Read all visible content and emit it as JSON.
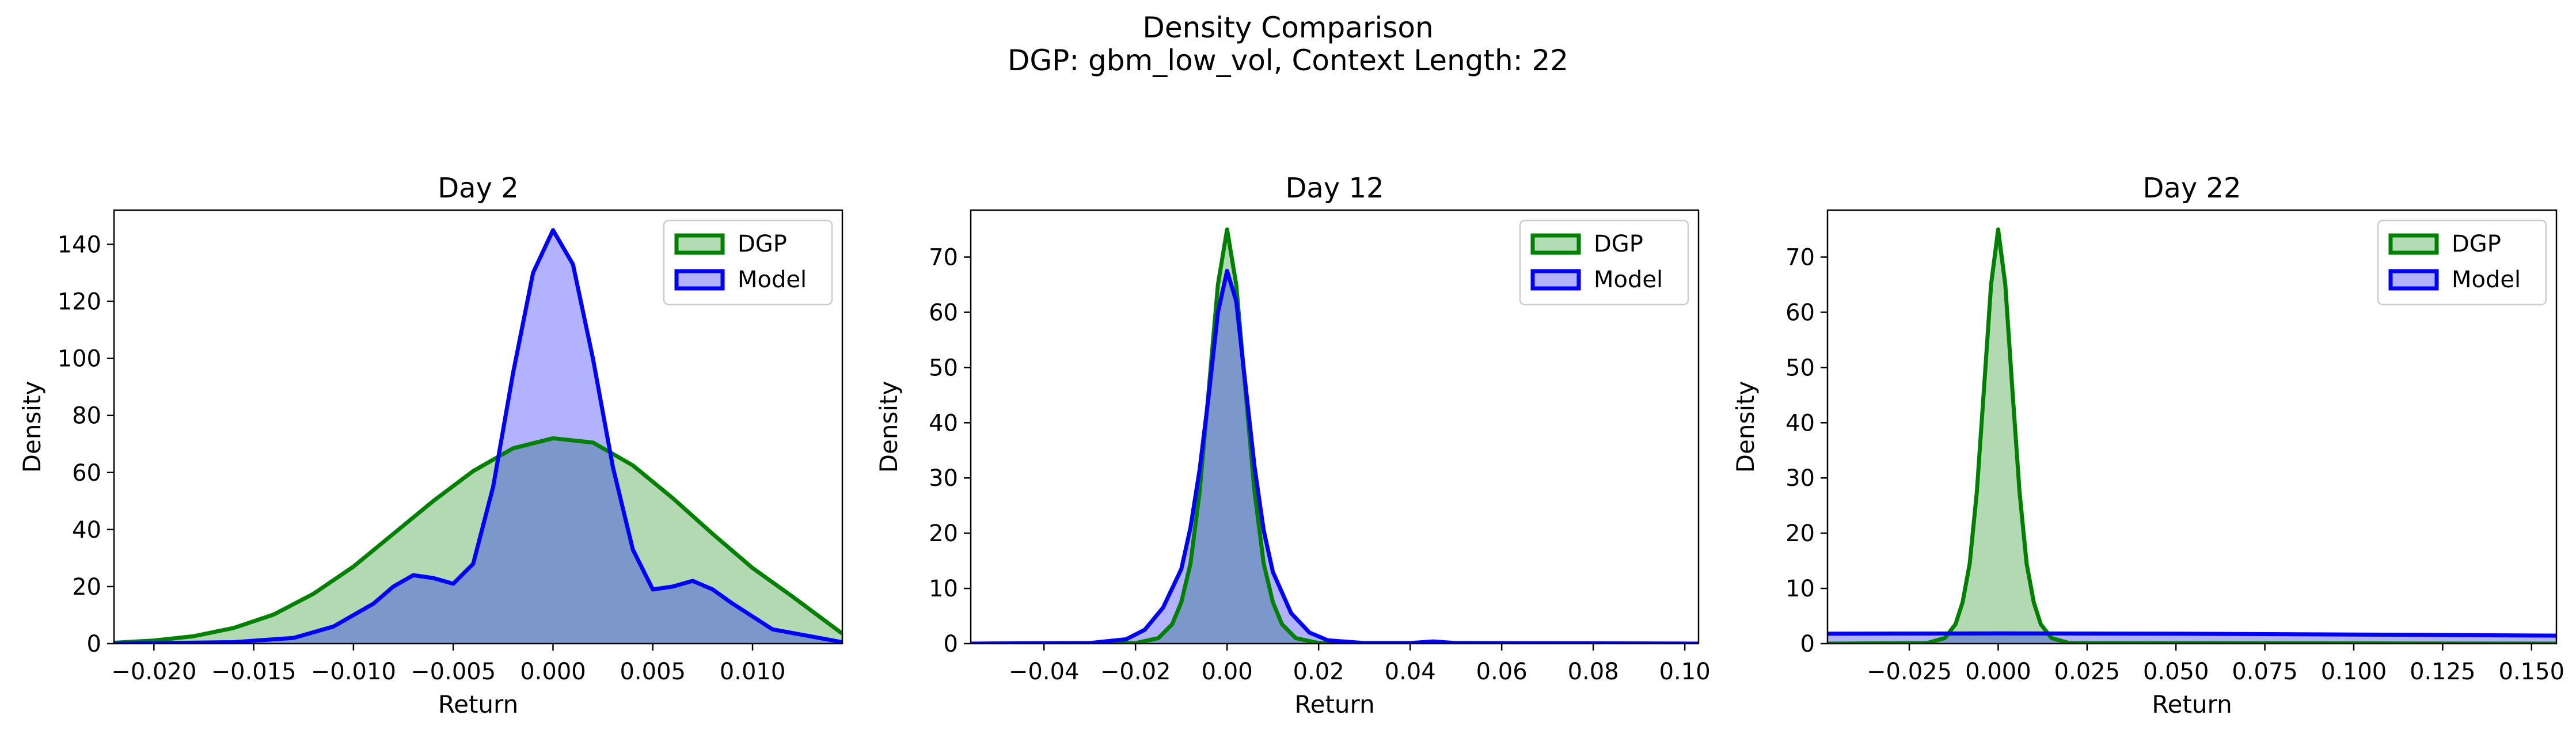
{
  "figure": {
    "title": "Density Comparison",
    "subtitle": "DGP: gbm_low_vol, Context Length: 22"
  },
  "colors": {
    "dgp_line": "#008000",
    "dgp_fill": "#b2dcb2",
    "model_line": "#0000ff",
    "model_fill": "#b2b2ff",
    "overlap_fill": "#7f9dcd"
  },
  "chart_data": [
    {
      "type": "area",
      "title": "Day 2",
      "xlabel": "Return",
      "ylabel": "Density",
      "xlim": [
        -0.022,
        0.0145
      ],
      "ylim": [
        0,
        152
      ],
      "xticks": [
        -0.02,
        -0.015,
        -0.01,
        -0.005,
        0.0,
        0.005,
        0.01
      ],
      "xtick_labels": [
        "−0.020",
        "−0.015",
        "−0.010",
        "−0.005",
        "0.000",
        "0.005",
        "0.010"
      ],
      "yticks": [
        0,
        20,
        40,
        60,
        80,
        100,
        120,
        140
      ],
      "ytick_labels": [
        "0",
        "20",
        "40",
        "60",
        "80",
        "100",
        "120",
        "140"
      ],
      "legend": "top-right",
      "series": [
        {
          "name": "DGP",
          "x": [
            -0.022,
            -0.02,
            -0.018,
            -0.016,
            -0.014,
            -0.012,
            -0.01,
            -0.008,
            -0.006,
            -0.004,
            -0.002,
            0.0,
            0.002,
            0.004,
            0.006,
            0.008,
            0.01,
            0.012,
            0.0145
          ],
          "y": [
            0.3,
            1.1,
            2.6,
            5.5,
            10.2,
            17.5,
            27.0,
            38.5,
            50.0,
            60.5,
            68.5,
            72.0,
            70.5,
            62.5,
            51.0,
            38.5,
            26.5,
            16.5,
            3.5
          ]
        },
        {
          "name": "Model",
          "x": [
            -0.022,
            -0.016,
            -0.013,
            -0.011,
            -0.009,
            -0.008,
            -0.007,
            -0.006,
            -0.005,
            -0.004,
            -0.003,
            -0.002,
            -0.001,
            0.0,
            0.001,
            0.002,
            0.003,
            0.004,
            0.005,
            0.006,
            0.007,
            0.008,
            0.009,
            0.011,
            0.0145
          ],
          "y": [
            0,
            0.5,
            2,
            6,
            14,
            20,
            24,
            23,
            21,
            28,
            55,
            95,
            130,
            145,
            133,
            100,
            62,
            33,
            19,
            20,
            22,
            19,
            14,
            5,
            0.5
          ]
        }
      ]
    },
    {
      "type": "area",
      "title": "Day 12",
      "xlabel": "Return",
      "ylabel": "Density",
      "xlim": [
        -0.056,
        0.103
      ],
      "ylim": [
        0,
        78.5
      ],
      "xticks": [
        -0.04,
        -0.02,
        0.0,
        0.02,
        0.04,
        0.06,
        0.08,
        0.1
      ],
      "xtick_labels": [
        "−0.04",
        "−0.02",
        "0.00",
        "0.02",
        "0.04",
        "0.06",
        "0.08",
        "0.10"
      ],
      "yticks": [
        0,
        10,
        20,
        30,
        40,
        50,
        60,
        70
      ],
      "ytick_labels": [
        "0",
        "10",
        "20",
        "30",
        "40",
        "50",
        "60",
        "70"
      ],
      "legend": "top-right",
      "series": [
        {
          "name": "DGP",
          "x": [
            -0.056,
            -0.02,
            -0.015,
            -0.012,
            -0.01,
            -0.008,
            -0.006,
            -0.004,
            -0.002,
            0.0,
            0.002,
            0.004,
            0.006,
            0.008,
            0.01,
            0.012,
            0.015,
            0.02,
            0.103
          ],
          "y": [
            0,
            0.1,
            1.0,
            3.5,
            7.5,
            14.5,
            27.5,
            46.0,
            65.0,
            75.0,
            65.0,
            46.0,
            27.5,
            14.5,
            7.5,
            3.5,
            1.0,
            0.1,
            0
          ]
        },
        {
          "name": "Model",
          "x": [
            -0.056,
            -0.03,
            -0.022,
            -0.018,
            -0.014,
            -0.01,
            -0.008,
            -0.006,
            -0.004,
            -0.002,
            0.0,
            0.002,
            0.004,
            0.006,
            0.008,
            0.01,
            0.014,
            0.018,
            0.022,
            0.03,
            0.04,
            0.045,
            0.05,
            0.103
          ],
          "y": [
            0,
            0.1,
            0.8,
            2.5,
            6.5,
            13.5,
            21.0,
            31.5,
            45.0,
            60.0,
            67.5,
            62.0,
            47.0,
            32.0,
            20.5,
            13.0,
            5.5,
            2.0,
            0.6,
            0.1,
            0.1,
            0.4,
            0.1,
            0
          ]
        }
      ]
    },
    {
      "type": "area",
      "title": "Day 22",
      "xlabel": "Return",
      "ylabel": "Density",
      "xlim": [
        -0.048,
        0.157
      ],
      "ylim": [
        0,
        78.5
      ],
      "xticks": [
        -0.025,
        0.0,
        0.025,
        0.05,
        0.075,
        0.1,
        0.125,
        0.15
      ],
      "xtick_labels": [
        "−0.025",
        "0.000",
        "0.025",
        "0.050",
        "0.075",
        "0.100",
        "0.125",
        "0.150"
      ],
      "yticks": [
        0,
        10,
        20,
        30,
        40,
        50,
        60,
        70
      ],
      "ytick_labels": [
        "0",
        "10",
        "20",
        "30",
        "40",
        "50",
        "60",
        "70"
      ],
      "legend": "top-right",
      "series": [
        {
          "name": "DGP",
          "x": [
            -0.048,
            -0.02,
            -0.015,
            -0.012,
            -0.01,
            -0.008,
            -0.006,
            -0.004,
            -0.002,
            0.0,
            0.002,
            0.004,
            0.006,
            0.008,
            0.01,
            0.012,
            0.015,
            0.02,
            0.157
          ],
          "y": [
            0,
            0.1,
            1.0,
            3.5,
            7.5,
            14.5,
            27.5,
            46.0,
            65.0,
            75.0,
            65.0,
            46.0,
            27.5,
            14.5,
            7.5,
            3.5,
            1.0,
            0.1,
            0
          ]
        },
        {
          "name": "Model",
          "x": [
            -0.048,
            0.0,
            0.05,
            0.1,
            0.157
          ],
          "y": [
            1.8,
            1.85,
            1.8,
            1.65,
            1.45
          ]
        }
      ]
    }
  ]
}
